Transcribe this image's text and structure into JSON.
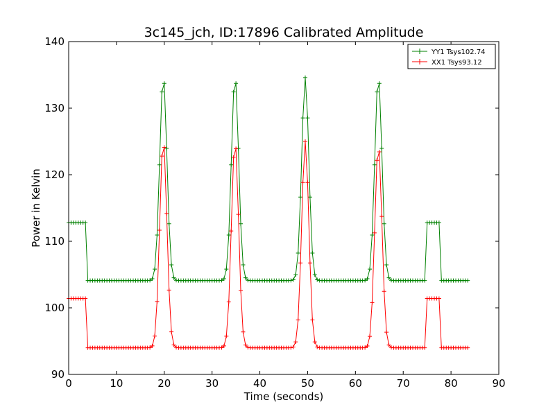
{
  "chart_data": {
    "type": "line",
    "title": "3c145_jch, ID:17896 Calibrated Amplitude",
    "xlabel": "Time (seconds)",
    "ylabel": "Power in Kelvin",
    "xlim": [
      0,
      90
    ],
    "ylim": [
      90,
      140
    ],
    "xticks": [
      "0",
      "10",
      "20",
      "30",
      "40",
      "50",
      "60",
      "70",
      "80",
      "90"
    ],
    "yticks": [
      "90",
      "100",
      "110",
      "120",
      "130",
      "140"
    ],
    "grid": false,
    "legend_position": "top-right",
    "marker": "+",
    "series": [
      {
        "name": "YY1 Tsys102.74",
        "color": "#008000",
        "base_segments": [
          [
            0,
            4,
            112.8
          ],
          [
            4,
            75,
            104.1
          ],
          [
            75,
            78,
            112.8
          ],
          [
            78,
            83.5,
            104.1
          ]
        ],
        "peaks": [
          [
            19.8,
            134.8
          ],
          [
            34.8,
            134.8
          ],
          [
            49.5,
            134.6
          ],
          [
            64.8,
            134.8
          ]
        ]
      },
      {
        "name": "XX1 Tsys93.12",
        "color": "#ff0000",
        "base_segments": [
          [
            0,
            4,
            101.4
          ],
          [
            4,
            75,
            94.0
          ],
          [
            75,
            78,
            101.4
          ],
          [
            78,
            83.5,
            94.0
          ]
        ],
        "peaks": [
          [
            19.8,
            125.2
          ],
          [
            34.8,
            125.0
          ],
          [
            49.5,
            125.0
          ],
          [
            64.8,
            124.5
          ]
        ]
      }
    ],
    "sample_step": 0.5,
    "peak_width": 0.75
  }
}
